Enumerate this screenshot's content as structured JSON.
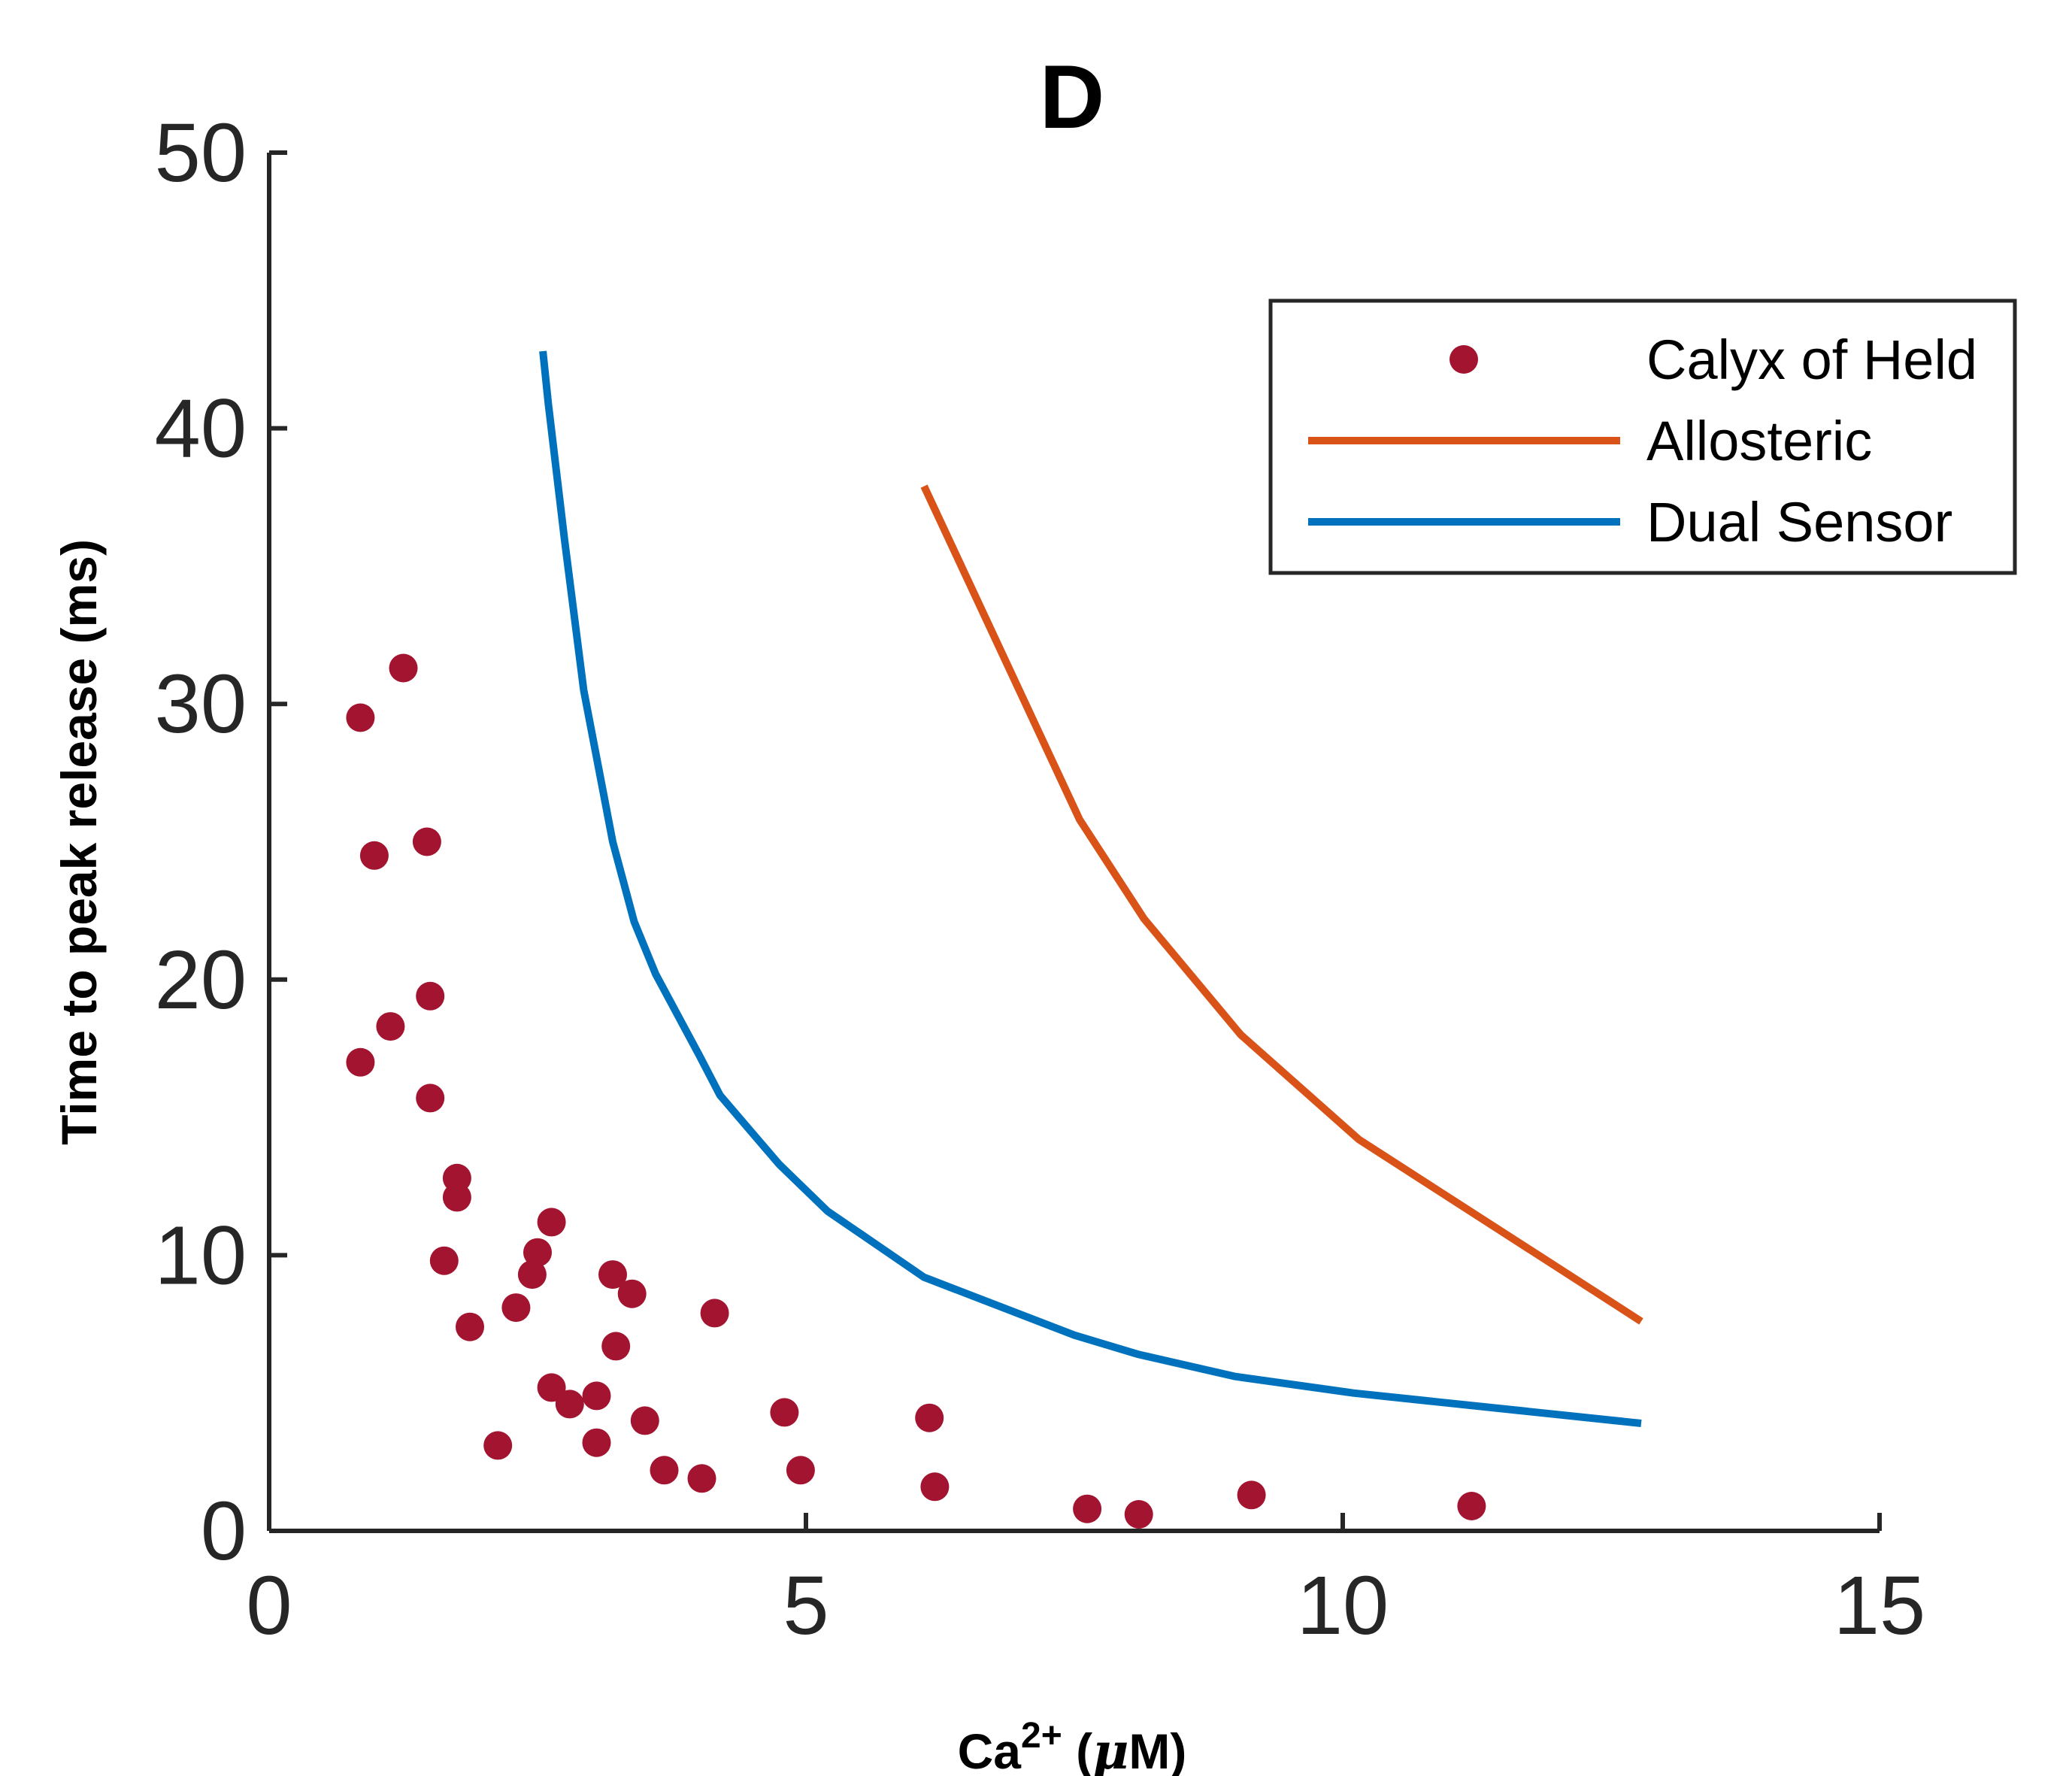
{
  "chart_data": {
    "type": "scatter",
    "title": "D",
    "xlabel_parts": {
      "base": "Ca",
      "sup": "2+",
      "unit_open": " (",
      "mu": "μ",
      "unit_rest": "M)"
    },
    "ylabel": "Time to peak release (ms)",
    "xlim": [
      0,
      15
    ],
    "ylim": [
      0,
      50
    ],
    "xticks": [
      0,
      5,
      10,
      15
    ],
    "yticks": [
      0,
      10,
      20,
      30,
      40,
      50
    ],
    "xtick_labels": [
      "0",
      "5",
      "10",
      "15"
    ],
    "ytick_labels": [
      "0",
      "10",
      "20",
      "30",
      "40",
      "50"
    ],
    "grid": false,
    "legend_position": "top-right",
    "series": [
      {
        "name": "Calyx of Held",
        "kind": "scatter",
        "color": "#A2142F",
        "points": [
          [
            0.85,
            29.5
          ],
          [
            1.25,
            31.3
          ],
          [
            0.98,
            24.5
          ],
          [
            1.47,
            25.0
          ],
          [
            1.5,
            19.4
          ],
          [
            0.85,
            17.0
          ],
          [
            1.13,
            18.3
          ],
          [
            1.5,
            15.7
          ],
          [
            1.75,
            12.8
          ],
          [
            1.75,
            12.1
          ],
          [
            1.63,
            9.8
          ],
          [
            1.87,
            7.4
          ],
          [
            2.13,
            3.1
          ],
          [
            2.3,
            8.1
          ],
          [
            2.45,
            9.3
          ],
          [
            2.5,
            10.1
          ],
          [
            2.63,
            11.2
          ],
          [
            2.63,
            5.2
          ],
          [
            2.8,
            4.6
          ],
          [
            3.05,
            4.9
          ],
          [
            3.05,
            3.2
          ],
          [
            3.2,
            9.3
          ],
          [
            3.23,
            6.7
          ],
          [
            3.38,
            8.6
          ],
          [
            3.5,
            4.0
          ],
          [
            3.68,
            2.2
          ],
          [
            4.03,
            1.9
          ],
          [
            4.15,
            7.9
          ],
          [
            4.8,
            4.3
          ],
          [
            4.95,
            2.2
          ],
          [
            6.15,
            4.1
          ],
          [
            6.2,
            1.6
          ],
          [
            7.62,
            0.8
          ],
          [
            8.1,
            0.6
          ],
          [
            9.15,
            1.3
          ],
          [
            11.2,
            0.9
          ]
        ]
      },
      {
        "name": "Allosteric",
        "kind": "line",
        "color": "#D95319",
        "points": [
          [
            6.1,
            37.9
          ],
          [
            7.55,
            25.8
          ],
          [
            8.15,
            22.2
          ],
          [
            9.05,
            18.0
          ],
          [
            10.15,
            14.2
          ],
          [
            12.78,
            7.6
          ]
        ]
      },
      {
        "name": "Dual Sensor",
        "kind": "line",
        "color": "#0072BD",
        "points": [
          [
            2.55,
            42.8
          ],
          [
            2.6,
            40.9
          ],
          [
            2.75,
            36.0
          ],
          [
            2.93,
            30.5
          ],
          [
            3.2,
            25.0
          ],
          [
            3.4,
            22.1
          ],
          [
            3.6,
            20.2
          ],
          [
            4.0,
            17.3
          ],
          [
            4.2,
            15.8
          ],
          [
            4.75,
            13.3
          ],
          [
            5.2,
            11.6
          ],
          [
            6.1,
            9.2
          ],
          [
            7.5,
            7.1
          ],
          [
            8.1,
            6.4
          ],
          [
            9.0,
            5.6
          ],
          [
            10.1,
            5.0
          ],
          [
            12.78,
            3.9
          ]
        ]
      }
    ]
  }
}
